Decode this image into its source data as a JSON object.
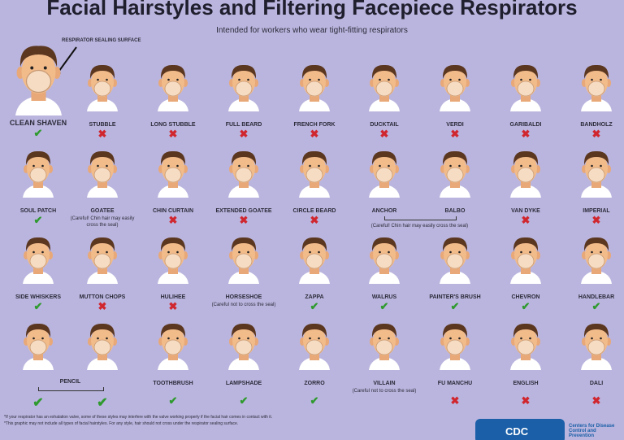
{
  "title": "Facial Hairstyles and Filtering Facepiece Respirators",
  "subtitle": "Intended for workers who wear tight-fitting respirators",
  "callout": "RESPIRATOR SEALING SURFACE",
  "styles": [
    {
      "label": "CLEAN SHAVEN",
      "status": "ok"
    },
    {
      "label": "STUBBLE",
      "status": "no"
    },
    {
      "label": "LONG STUBBLE",
      "status": "no"
    },
    {
      "label": "FULL BEARD",
      "status": "no"
    },
    {
      "label": "FRENCH FORK",
      "status": "no"
    },
    {
      "label": "DUCKTAIL",
      "status": "no"
    },
    {
      "label": "VERDI",
      "status": "no"
    },
    {
      "label": "GARIBALDI",
      "status": "no"
    },
    {
      "label": "BANDHOLZ",
      "status": "no"
    },
    {
      "label": "SOUL PATCH",
      "status": "ok"
    },
    {
      "label": "GOATEE",
      "status": null,
      "note": "(Careful! Chin hair may easily cross the seal)"
    },
    {
      "label": "CHIN CURTAIN",
      "status": "no"
    },
    {
      "label": "EXTENDED GOATEE",
      "status": "no"
    },
    {
      "label": "CIRCLE BEARD",
      "status": "no"
    },
    {
      "label": "ANCHOR",
      "status": null
    },
    {
      "label": "BALBO",
      "status": null
    },
    {
      "label": "VAN DYKE",
      "status": "no"
    },
    {
      "label": "IMPERIAL",
      "status": "no"
    },
    {
      "label": "SIDE WHISKERS",
      "status": "ok"
    },
    {
      "label": "MUTTON CHOPS",
      "status": "no"
    },
    {
      "label": "HULIHEE",
      "status": "no"
    },
    {
      "label": "HORSESHOE",
      "status": null,
      "note": "(Careful not to cross the seal)"
    },
    {
      "label": "ZAPPA",
      "status": "ok"
    },
    {
      "label": "WALRUS",
      "status": "ok"
    },
    {
      "label": "PAINTER'S BRUSH",
      "status": "ok"
    },
    {
      "label": "CHEVRON",
      "status": "ok"
    },
    {
      "label": "HANDLEBAR",
      "status": "ok"
    },
    {
      "label": null,
      "status": "ok"
    },
    {
      "label": null,
      "status": "ok"
    },
    {
      "label": "TOOTHBRUSH",
      "status": "ok"
    },
    {
      "label": "LAMPSHADE",
      "status": "ok"
    },
    {
      "label": "ZORRO",
      "status": "ok"
    },
    {
      "label": "VILLAIN",
      "status": null,
      "note": "(Careful not to cross the seal)"
    },
    {
      "label": "FU MANCHU",
      "status": "no"
    },
    {
      "label": "ENGLISH",
      "status": "no"
    },
    {
      "label": "DALI",
      "status": "no"
    }
  ],
  "group_labels": {
    "pencil": "PENCIL",
    "anchor_balbo": "(Careful! Chin hair may easily cross the seal)"
  },
  "footnotes": [
    "*If your respirator has an exhalation valve, some of these styles may interfere with the valve working properly if the facial hair comes in contact with it.",
    "*This graphic may not include all types of facial hairstyles. For any style, hair should not cross under the respirator sealing surface."
  ],
  "logo": {
    "mark": "CDC",
    "caption": "Centers for Disease Control and Prevention"
  }
}
